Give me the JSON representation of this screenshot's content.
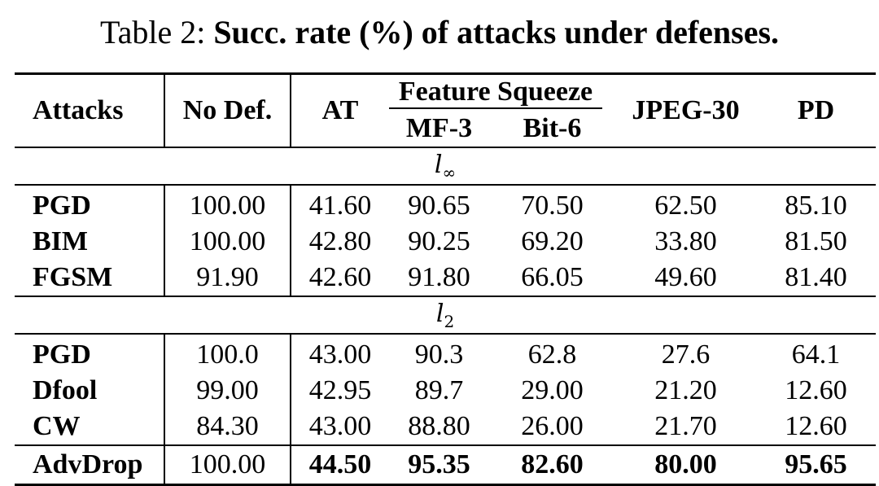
{
  "caption": {
    "prefix": "Table 2: ",
    "title": "Succ. rate (%) of attacks under defenses."
  },
  "headers": {
    "attacks": "Attacks",
    "no_def": "No Def.",
    "at": "AT",
    "feature_squeeze": "Feature Squeeze",
    "mf3": "MF-3",
    "bit6": "Bit-6",
    "jpeg30": "JPEG-30",
    "pd": "PD"
  },
  "sections": [
    {
      "norm_base": "l",
      "norm_sub": "∞",
      "rows": [
        {
          "attack": "PGD",
          "no_def": "100.00",
          "at": "41.60",
          "mf3": "90.65",
          "bit6": "70.50",
          "jpeg30": "62.50",
          "pd": "85.10"
        },
        {
          "attack": "BIM",
          "no_def": "100.00",
          "at": "42.80",
          "mf3": "90.25",
          "bit6": "69.20",
          "jpeg30": "33.80",
          "pd": "81.50"
        },
        {
          "attack": "FGSM",
          "no_def": "91.90",
          "at": "42.60",
          "mf3": "91.80",
          "bit6": "66.05",
          "jpeg30": "49.60",
          "pd": "81.40"
        }
      ]
    },
    {
      "norm_base": "l",
      "norm_sub": "2",
      "rows": [
        {
          "attack": "PGD",
          "no_def": "100.0",
          "at": "43.00",
          "mf3": "90.3",
          "bit6": "62.8",
          "jpeg30": "27.6",
          "pd": "64.1"
        },
        {
          "attack": "Dfool",
          "no_def": "99.00",
          "at": "42.95",
          "mf3": "89.7",
          "bit6": "29.00",
          "jpeg30": "21.20",
          "pd": "12.60"
        },
        {
          "attack": "CW",
          "no_def": "84.30",
          "at": "43.00",
          "mf3": "88.80",
          "bit6": "26.00",
          "jpeg30": "21.70",
          "pd": "12.60"
        }
      ]
    }
  ],
  "final_row": {
    "attack": "AdvDrop",
    "no_def": "100.00",
    "at": "44.50",
    "mf3": "95.35",
    "bit6": "82.60",
    "jpeg30": "80.00",
    "pd": "95.65"
  }
}
